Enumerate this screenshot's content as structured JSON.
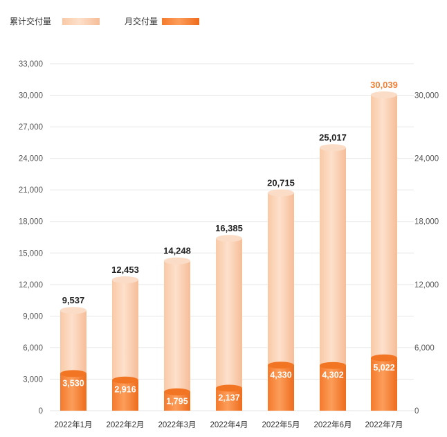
{
  "legend": {
    "cumulative": "累计交付量",
    "monthly": "月交付量"
  },
  "colors": {
    "cumulative_light": "#fbd6bc",
    "cumulative_mid": "#f7c3a1",
    "monthly_light": "#fc9a52",
    "monthly_dark": "#ef6f1e",
    "highlight_label": "#ef7f35"
  },
  "chart_data": {
    "type": "bar",
    "title": "",
    "xlabel": "",
    "ylabel": "",
    "categories": [
      "2022年1月",
      "2022年2月",
      "2022年3月",
      "2022年4月",
      "2022年5月",
      "2022年6月",
      "2022年7月"
    ],
    "series": [
      {
        "name": "累计交付量",
        "values": [
          9537,
          12453,
          14248,
          16385,
          20715,
          25017,
          30039
        ],
        "labels": [
          "9,537",
          "12,453",
          "14,248",
          "16,385",
          "20,715",
          "25,017",
          "30,039"
        ]
      },
      {
        "name": "月交付量",
        "values": [
          3530,
          2916,
          1795,
          2137,
          4330,
          4302,
          5022
        ],
        "labels": [
          "3,530",
          "2,916",
          "1,795",
          "2,137",
          "4,330",
          "4,302",
          "5,022"
        ]
      }
    ],
    "ylim": [
      0,
      33000
    ],
    "left_axis_ticks": [
      "0",
      "3,000",
      "6,000",
      "9,000",
      "12,000",
      "15,000",
      "18,000",
      "21,000",
      "24,000",
      "27,000",
      "30,000",
      "33,000"
    ],
    "left_axis_values": [
      0,
      3000,
      6000,
      9000,
      12000,
      15000,
      18000,
      21000,
      24000,
      27000,
      30000,
      33000
    ],
    "right_axis_ticks": [
      "0",
      "6,000",
      "12,000",
      "18,000",
      "24,000",
      "30,000"
    ],
    "right_axis_values": [
      0,
      6000,
      12000,
      18000,
      24000,
      30000
    ],
    "grid": true,
    "legend_position": "top-left"
  }
}
